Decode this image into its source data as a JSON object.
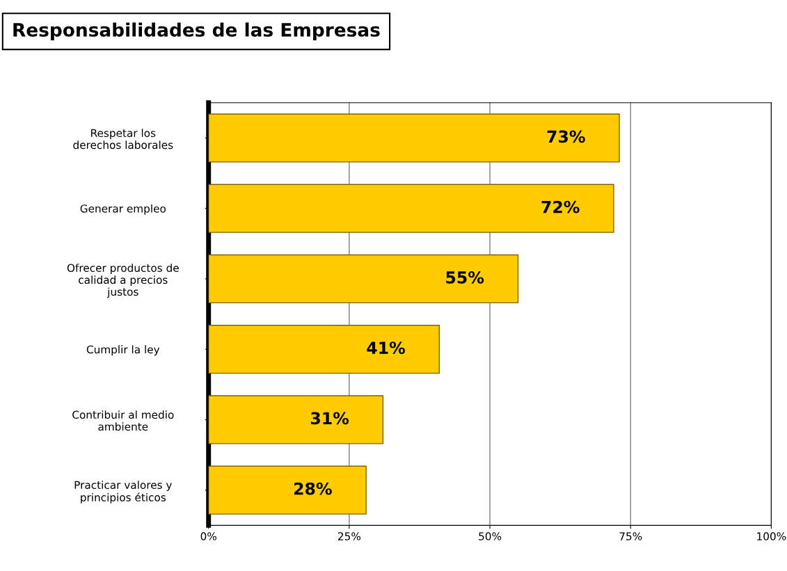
{
  "chart_data": {
    "type": "bar",
    "orientation": "horizontal",
    "title": "Responsabilidades de las Empresas",
    "categories": [
      "Respetar los\nderechos laborales",
      "Generar empleo",
      "Ofrecer productos de\ncalidad a precios\njustos",
      "Cumplir la ley",
      "Contribuir al medio\nambiente",
      "Practicar valores y\nprincipios éticos"
    ],
    "values": [
      73,
      72,
      55,
      41,
      31,
      28
    ],
    "value_labels": [
      "73%",
      "72%",
      "55%",
      "41%",
      "31%",
      "28%"
    ],
    "color": "#ffcc00",
    "xlim": [
      0,
      100
    ],
    "xticks": [
      {
        "value": 0,
        "label": "0%"
      },
      {
        "value": 25,
        "label": "25%"
      },
      {
        "value": 50,
        "label": "50%"
      },
      {
        "value": 75,
        "label": "75%"
      },
      {
        "value": 100,
        "label": "100%"
      }
    ],
    "grid": "x",
    "legend": false
  }
}
